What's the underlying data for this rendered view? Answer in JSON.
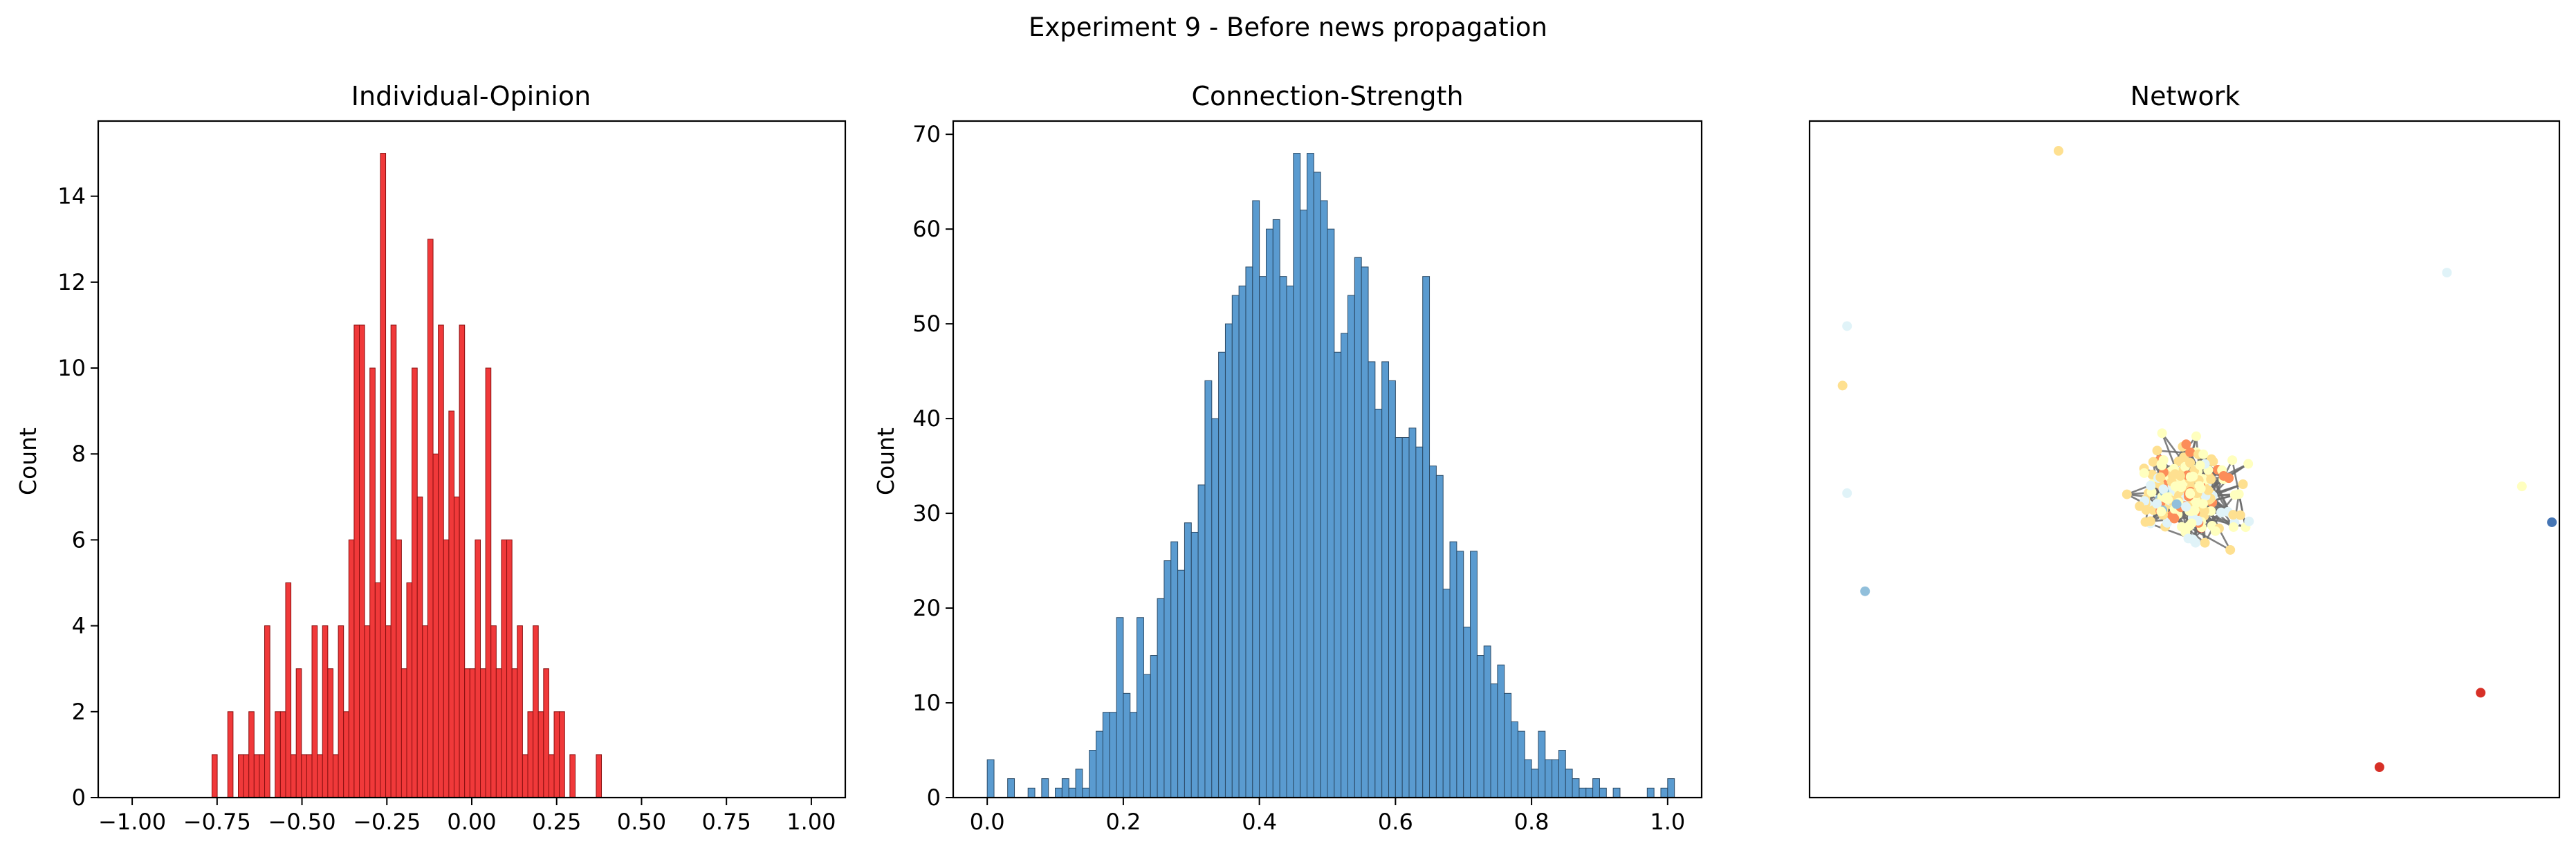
{
  "figure": {
    "suptitle": "Experiment 9 - Before news propagation"
  },
  "colors": {
    "opinion_bar": "#f0393a",
    "opinion_edge": "#8a1010",
    "strength_bar": "#5a9bd0",
    "strength_edge": "#2b4a66",
    "edge": "#6b6b6b"
  },
  "chart_data": [
    {
      "type": "bar",
      "title": "Individual-Opinion",
      "xlabel": "",
      "ylabel": "Count",
      "xlim": [
        -1.1,
        1.1
      ],
      "ylim": [
        0,
        15.75
      ],
      "xticks": [
        -1.0,
        -0.75,
        -0.5,
        -0.25,
        0.0,
        0.25,
        0.5,
        0.75,
        1.0
      ],
      "xtick_labels": [
        "−1.00",
        "−0.75",
        "−0.50",
        "−0.25",
        "0.00",
        "0.25",
        "0.50",
        "0.75",
        "1.00"
      ],
      "yticks": [
        0,
        2,
        4,
        6,
        8,
        10,
        12,
        14
      ],
      "ytick_labels": [
        "0",
        "2",
        "4",
        "6",
        "8",
        "10",
        "12",
        "14"
      ],
      "grid": false,
      "bin_start": -0.765,
      "bin_width": 0.0155,
      "counts": [
        1,
        0,
        0,
        2,
        0,
        1,
        1,
        2,
        1,
        1,
        4,
        0,
        2,
        2,
        5,
        1,
        3,
        1,
        1,
        4,
        1,
        4,
        3,
        1,
        4,
        2,
        6,
        11,
        11,
        4,
        10,
        5,
        15,
        4,
        11,
        6,
        3,
        5,
        10,
        7,
        4,
        13,
        8,
        11,
        6,
        9,
        7,
        11,
        3,
        3,
        6,
        3,
        10,
        4,
        3,
        6,
        6,
        3,
        4,
        1,
        2,
        4,
        2,
        3,
        1,
        2,
        2,
        0,
        1,
        0,
        0,
        0,
        0,
        1
      ],
      "series": [
        {
          "values_key": "counts"
        }
      ]
    },
    {
      "type": "bar",
      "title": "Connection-Strength",
      "xlabel": "",
      "ylabel": "Count",
      "xlim": [
        -0.05,
        1.05
      ],
      "ylim": [
        0,
        71.4
      ],
      "xticks": [
        0.0,
        0.2,
        0.4,
        0.6,
        0.8,
        1.0
      ],
      "xtick_labels": [
        "0.0",
        "0.2",
        "0.4",
        "0.6",
        "0.8",
        "1.0"
      ],
      "yticks": [
        0,
        10,
        20,
        30,
        40,
        50,
        60,
        70
      ],
      "ytick_labels": [
        "0",
        "10",
        "20",
        "30",
        "40",
        "50",
        "60",
        "70"
      ],
      "grid": false,
      "bin_start": 0.0,
      "bin_width": 0.01,
      "counts": [
        4,
        0,
        0,
        2,
        0,
        0,
        1,
        0,
        2,
        0,
        1,
        2,
        1,
        3,
        1,
        5,
        7,
        9,
        9,
        19,
        11,
        9,
        19,
        13,
        15,
        21,
        25,
        27,
        24,
        29,
        28,
        33,
        44,
        40,
        47,
        50,
        53,
        54,
        56,
        63,
        55,
        60,
        61,
        55,
        54,
        68,
        62,
        68,
        66,
        63,
        60,
        47,
        49,
        53,
        57,
        56,
        46,
        41,
        46,
        44,
        38,
        38,
        39,
        37,
        55,
        35,
        34,
        22,
        27,
        26,
        18,
        26,
        15,
        16,
        12,
        14,
        11,
        8,
        7,
        4,
        3,
        7,
        4,
        4,
        5,
        3,
        2,
        1,
        1,
        2,
        1,
        0,
        1,
        0,
        0,
        0,
        0,
        1,
        0,
        1,
        2
      ],
      "series": [
        {
          "values_key": "counts"
        }
      ]
    },
    {
      "type": "scatter",
      "title": "Network",
      "xlabel": "",
      "ylabel": "",
      "grid": false,
      "axes_visible": false,
      "layout": "spring",
      "node_palette": [
        "#d73027",
        "#fc8d59",
        "#fee090",
        "#ffffbf",
        "#e0f3f8",
        "#91bfdb",
        "#4575b4"
      ],
      "isolated_nodes": [
        {
          "x": 0.332,
          "y": 0.956,
          "color": "#fee090"
        },
        {
          "x": 0.85,
          "y": 0.776,
          "color": "#e0f3f8"
        },
        {
          "x": 0.05,
          "y": 0.697,
          "color": "#e0f3f8"
        },
        {
          "x": 0.044,
          "y": 0.609,
          "color": "#fee090"
        },
        {
          "x": 0.95,
          "y": 0.46,
          "color": "#ffffbf"
        },
        {
          "x": 0.05,
          "y": 0.45,
          "color": "#e0f3f8"
        },
        {
          "x": 0.99,
          "y": 0.407,
          "color": "#4575b4"
        },
        {
          "x": 0.074,
          "y": 0.305,
          "color": "#91bfdb"
        },
        {
          "x": 0.895,
          "y": 0.155,
          "color": "#d73027"
        },
        {
          "x": 0.76,
          "y": 0.045,
          "color": "#d73027"
        }
      ],
      "cluster": {
        "x": 0.5,
        "y": 0.45,
        "node_count": 260
      }
    }
  ]
}
